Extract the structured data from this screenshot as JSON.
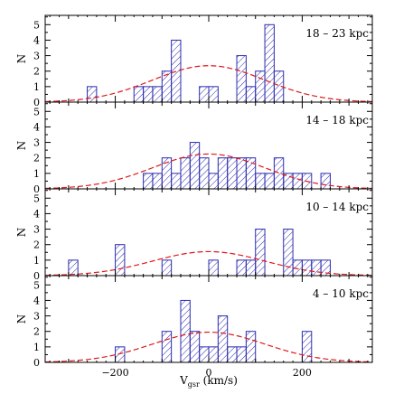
{
  "figure": {
    "xlabel_main": "V",
    "xlabel_sub": "gsr",
    "xlabel_unit": " (km/s)"
  },
  "colors": {
    "hist": "#2a2ab0",
    "gauss": "#e01818",
    "axis": "#000000"
  },
  "chart_data": [
    {
      "type": "bar",
      "title": "18 – 23 kpc",
      "ylabel": "N",
      "xlim": [
        -350,
        350
      ],
      "ylim": [
        0,
        5.6
      ],
      "yticks": [
        0,
        1,
        2,
        3,
        4,
        5
      ],
      "xticks": [
        -200,
        0,
        200
      ],
      "bin_width": 20,
      "bins": [
        {
          "x0": -260,
          "count": 1
        },
        {
          "x0": -240,
          "count": 0
        },
        {
          "x0": -220,
          "count": 0
        },
        {
          "x0": -200,
          "count": 0
        },
        {
          "x0": -180,
          "count": 0
        },
        {
          "x0": -160,
          "count": 1
        },
        {
          "x0": -140,
          "count": 1
        },
        {
          "x0": -120,
          "count": 1
        },
        {
          "x0": -100,
          "count": 2
        },
        {
          "x0": -80,
          "count": 4
        },
        {
          "x0": -60,
          "count": 0
        },
        {
          "x0": -40,
          "count": 0
        },
        {
          "x0": -20,
          "count": 1
        },
        {
          "x0": 0,
          "count": 1
        },
        {
          "x0": 20,
          "count": 0
        },
        {
          "x0": 40,
          "count": 0
        },
        {
          "x0": 60,
          "count": 3
        },
        {
          "x0": 80,
          "count": 1
        },
        {
          "x0": 100,
          "count": 2
        },
        {
          "x0": 120,
          "count": 5
        },
        {
          "x0": 140,
          "count": 2
        }
      ],
      "gaussian": {
        "amplitude": 2.35,
        "mean": 0,
        "sigma": 120
      }
    },
    {
      "type": "bar",
      "title": "14 – 18 kpc",
      "ylabel": "N",
      "xlim": [
        -350,
        350
      ],
      "ylim": [
        0,
        5.6
      ],
      "yticks": [
        0,
        1,
        2,
        3,
        4,
        5
      ],
      "xticks": [
        -200,
        0,
        200
      ],
      "bin_width": 20,
      "bins": [
        {
          "x0": -140,
          "count": 1
        },
        {
          "x0": -120,
          "count": 1
        },
        {
          "x0": -100,
          "count": 2
        },
        {
          "x0": -80,
          "count": 1
        },
        {
          "x0": -60,
          "count": 2
        },
        {
          "x0": -40,
          "count": 3
        },
        {
          "x0": -20,
          "count": 2
        },
        {
          "x0": 0,
          "count": 1
        },
        {
          "x0": 20,
          "count": 2
        },
        {
          "x0": 40,
          "count": 2
        },
        {
          "x0": 60,
          "count": 2
        },
        {
          "x0": 80,
          "count": 2
        },
        {
          "x0": 100,
          "count": 1
        },
        {
          "x0": 120,
          "count": 1
        },
        {
          "x0": 140,
          "count": 2
        },
        {
          "x0": 160,
          "count": 1
        },
        {
          "x0": 180,
          "count": 1
        },
        {
          "x0": 200,
          "count": 1
        },
        {
          "x0": 220,
          "count": 0
        },
        {
          "x0": 240,
          "count": 1
        }
      ],
      "gaussian": {
        "amplitude": 2.25,
        "mean": 0,
        "sigma": 120
      }
    },
    {
      "type": "bar",
      "title": "10 – 14 kpc",
      "ylabel": "N",
      "xlim": [
        -350,
        350
      ],
      "ylim": [
        0,
        5.6
      ],
      "yticks": [
        0,
        1,
        2,
        3,
        4,
        5
      ],
      "xticks": [
        -200,
        0,
        200
      ],
      "bin_width": 20,
      "bins": [
        {
          "x0": -300,
          "count": 1
        },
        {
          "x0": -280,
          "count": 0
        },
        {
          "x0": -260,
          "count": 0
        },
        {
          "x0": -240,
          "count": 0
        },
        {
          "x0": -220,
          "count": 0
        },
        {
          "x0": -200,
          "count": 2
        },
        {
          "x0": -180,
          "count": 0
        },
        {
          "x0": -160,
          "count": 0
        },
        {
          "x0": -140,
          "count": 0
        },
        {
          "x0": -120,
          "count": 0
        },
        {
          "x0": -100,
          "count": 1
        },
        {
          "x0": -80,
          "count": 0
        },
        {
          "x0": -60,
          "count": 0
        },
        {
          "x0": -40,
          "count": 0
        },
        {
          "x0": -20,
          "count": 0
        },
        {
          "x0": 0,
          "count": 1
        },
        {
          "x0": 20,
          "count": 0
        },
        {
          "x0": 40,
          "count": 0
        },
        {
          "x0": 60,
          "count": 1
        },
        {
          "x0": 80,
          "count": 1
        },
        {
          "x0": 100,
          "count": 3
        },
        {
          "x0": 120,
          "count": 0
        },
        {
          "x0": 140,
          "count": 0
        },
        {
          "x0": 160,
          "count": 3
        },
        {
          "x0": 180,
          "count": 1
        },
        {
          "x0": 200,
          "count": 1
        },
        {
          "x0": 220,
          "count": 1
        },
        {
          "x0": 240,
          "count": 1
        }
      ],
      "gaussian": {
        "amplitude": 1.55,
        "mean": 0,
        "sigma": 120
      }
    },
    {
      "type": "bar",
      "title": "4 – 10 kpc",
      "ylabel": "N",
      "xlim": [
        -350,
        350
      ],
      "ylim": [
        0,
        5.6
      ],
      "yticks": [
        0,
        1,
        2,
        3,
        4,
        5
      ],
      "xticks": [
        -200,
        0,
        200
      ],
      "xticklabels": [
        "−200",
        "0",
        "200"
      ],
      "bin_width": 20,
      "bins": [
        {
          "x0": -200,
          "count": 1
        },
        {
          "x0": -180,
          "count": 0
        },
        {
          "x0": -160,
          "count": 0
        },
        {
          "x0": -140,
          "count": 0
        },
        {
          "x0": -120,
          "count": 0
        },
        {
          "x0": -100,
          "count": 2
        },
        {
          "x0": -80,
          "count": 0
        },
        {
          "x0": -60,
          "count": 4
        },
        {
          "x0": -40,
          "count": 2
        },
        {
          "x0": -20,
          "count": 1
        },
        {
          "x0": 0,
          "count": 1
        },
        {
          "x0": 20,
          "count": 3
        },
        {
          "x0": 40,
          "count": 1
        },
        {
          "x0": 60,
          "count": 1
        },
        {
          "x0": 80,
          "count": 2
        },
        {
          "x0": 100,
          "count": 0
        },
        {
          "x0": 120,
          "count": 0
        },
        {
          "x0": 140,
          "count": 0
        },
        {
          "x0": 160,
          "count": 0
        },
        {
          "x0": 180,
          "count": 0
        },
        {
          "x0": 200,
          "count": 2
        }
      ],
      "gaussian": {
        "amplitude": 1.95,
        "mean": 0,
        "sigma": 120
      }
    }
  ]
}
